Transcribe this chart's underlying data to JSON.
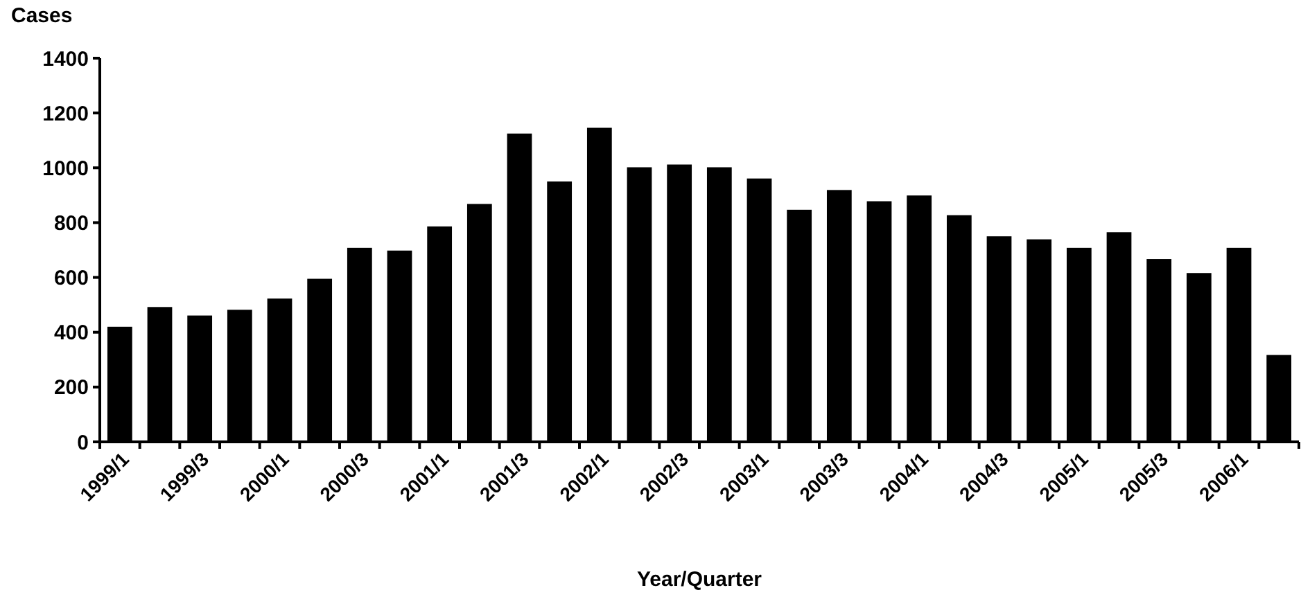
{
  "chart_data": {
    "type": "bar",
    "ylabel": "Cases",
    "xlabel": "Year/Quarter",
    "categories": [
      "1999/1",
      null,
      "1999/3",
      null,
      "2000/1",
      null,
      "2000/3",
      null,
      "2001/1",
      null,
      "2001/3",
      null,
      "2002/1",
      null,
      "2002/3",
      null,
      "2003/1",
      null,
      "2003/3",
      null,
      "2004/1",
      null,
      "2004/3",
      null,
      "2005/1",
      null,
      "2005/3",
      null,
      "2006/1",
      null
    ],
    "values": [
      420,
      492,
      461,
      482,
      523,
      595,
      708,
      698,
      786,
      868,
      1125,
      950,
      1146,
      1002,
      1012,
      1002,
      961,
      847,
      919,
      878,
      899,
      827,
      750,
      739,
      708,
      765,
      667,
      616,
      708,
      317
    ],
    "color": "#000000",
    "ylim": [
      0,
      1400
    ],
    "yticks": [
      0,
      200,
      400,
      600,
      800,
      1000,
      1200,
      1400
    ],
    "grid": false
  }
}
